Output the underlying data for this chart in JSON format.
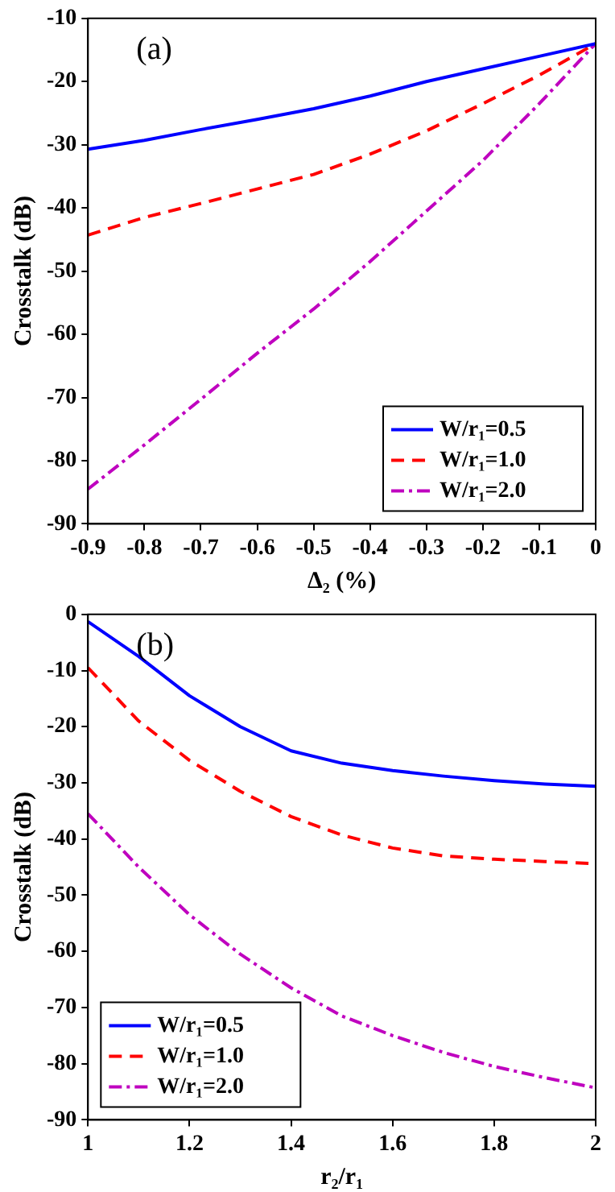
{
  "chart_data": [
    {
      "type": "line",
      "xlabel": "Δ₂ (%)",
      "ylabel": "Crosstalk (dB)",
      "annotations": [
        "(a)"
      ],
      "x": [
        -0.9,
        -0.8,
        -0.7,
        -0.6,
        -0.5,
        -0.4,
        -0.3,
        -0.2,
        -0.1,
        0
      ],
      "series": [
        {
          "name": "W/r₁=0.5",
          "color": "#0000ff",
          "line_style": "solid",
          "values": [
            -30.7,
            -29.3,
            -27.6,
            -26,
            -24.3,
            -22.3,
            -20,
            -18,
            -16,
            -14
          ]
        },
        {
          "name": "W/r₁=1.0",
          "color": "#ff0000",
          "line_style": "dashed",
          "values": [
            -44.3,
            -41.5,
            -39.3,
            -37,
            -34.7,
            -31.5,
            -27.8,
            -23.5,
            -19,
            -14
          ]
        },
        {
          "name": "W/r₁=2.0",
          "color": "#bf00bf",
          "line_style": "dashdot",
          "values": [
            -84.5,
            -77.5,
            -70.3,
            -63,
            -56,
            -48.5,
            -40.5,
            -32.5,
            -23.5,
            -14
          ]
        }
      ],
      "xlim": [
        -0.9,
        0
      ],
      "xticks": [
        -0.9,
        -0.8,
        -0.7,
        -0.6,
        -0.5,
        -0.4,
        -0.3,
        -0.2,
        -0.1,
        0
      ],
      "ylim": [
        -90,
        -10
      ],
      "yticks": [
        -90,
        -80,
        -70,
        -60,
        -50,
        -40,
        -30,
        -20,
        -10
      ],
      "grid": false,
      "legend": "bottom right",
      "marker": "none"
    },
    {
      "type": "line",
      "xlabel": "r₂/r₁",
      "ylabel": "Crosstalk (dB)",
      "annotations": [
        "(b)"
      ],
      "x": [
        1,
        1.1,
        1.2,
        1.3,
        1.4,
        1.5,
        1.6,
        1.7,
        1.8,
        1.9,
        2
      ],
      "series": [
        {
          "name": "W/r₁=0.5",
          "color": "#0000ff",
          "line_style": "solid",
          "values": [
            -1.3,
            -7.5,
            -14.5,
            -20,
            -24.3,
            -26.5,
            -27.8,
            -28.8,
            -29.6,
            -30.2,
            -30.6
          ]
        },
        {
          "name": "W/r₁=1.0",
          "color": "#ff0000",
          "line_style": "dashed",
          "values": [
            -9.5,
            -19,
            -26,
            -31.5,
            -36,
            -39.3,
            -41.6,
            -43,
            -43.6,
            -44,
            -44.4
          ]
        },
        {
          "name": "W/r₁=2.0",
          "color": "#bf00bf",
          "line_style": "dashdot",
          "values": [
            -35.5,
            -45,
            -53.5,
            -60.5,
            -66.5,
            -71.5,
            -75,
            -78,
            -80.5,
            -82.5,
            -84.3
          ]
        }
      ],
      "xlim": [
        1,
        2
      ],
      "xticks": [
        1,
        1.2,
        1.4,
        1.6,
        1.8,
        2
      ],
      "ylim": [
        -90,
        0
      ],
      "yticks": [
        -90,
        -80,
        -70,
        -60,
        -50,
        -40,
        -30,
        -20,
        -10,
        0
      ],
      "grid": false,
      "legend": "bottom left",
      "marker": "none"
    }
  ]
}
